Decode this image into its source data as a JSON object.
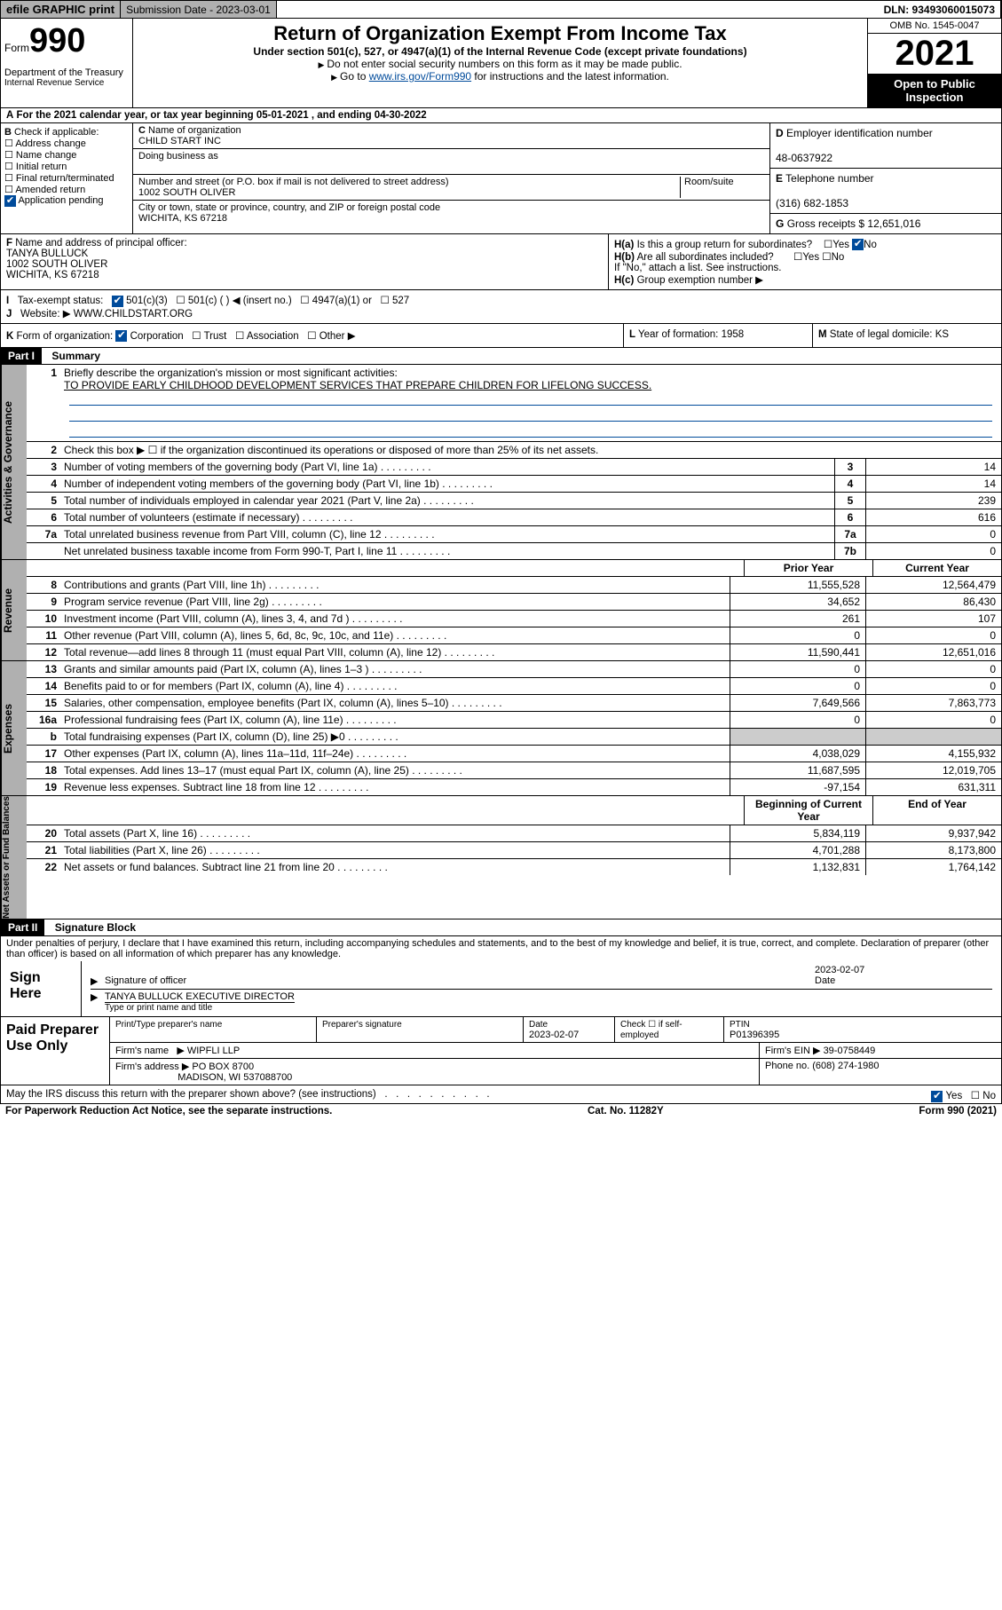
{
  "topbar": {
    "efile": "efile GRAPHIC print",
    "sub_label": "Submission Date - 2023-03-01",
    "dln": "DLN: 93493060015073"
  },
  "header": {
    "form_word": "Form",
    "form_no": "990",
    "title": "Return of Organization Exempt From Income Tax",
    "subtitle": "Under section 501(c), 527, or 4947(a)(1) of the Internal Revenue Code (except private foundations)",
    "note1": "Do not enter social security numbers on this form as it may be made public.",
    "note2_pre": "Go to ",
    "note2_link": "www.irs.gov/Form990",
    "note2_post": " for instructions and the latest information.",
    "omb": "OMB No. 1545-0047",
    "year": "2021",
    "inspect": "Open to Public Inspection",
    "dept": "Department of the Treasury",
    "irs": "Internal Revenue Service"
  },
  "ty": {
    "line": "For the 2021 calendar year, or tax year beginning 05-01-2021   , and ending 04-30-2022"
  },
  "B": {
    "label": "Check if applicable:",
    "opts": [
      "Address change",
      "Name change",
      "Initial return",
      "Final return/terminated",
      "Amended return",
      "Application pending"
    ]
  },
  "C": {
    "name_label": "Name of organization",
    "name": "CHILD START INC",
    "dba_label": "Doing business as",
    "street_label": "Number and street (or P.O. box if mail is not delivered to street address)",
    "room_label": "Room/suite",
    "street": "1002 SOUTH OLIVER",
    "city_label": "City or town, state or province, country, and ZIP or foreign postal code",
    "city": "WICHITA, KS  67218"
  },
  "D": {
    "label": "Employer identification number",
    "val": "48-0637922"
  },
  "E": {
    "label": "Telephone number",
    "val": "(316) 682-1853"
  },
  "G": {
    "label": "Gross receipts $",
    "val": "12,651,016"
  },
  "F": {
    "label": "Name and address of principal officer:",
    "name": "TANYA BULLUCK",
    "addr1": "1002 SOUTH OLIVER",
    "addr2": "WICHITA, KS  67218"
  },
  "H": {
    "a": "Is this a group return for subordinates?",
    "b": "Are all subordinates included?",
    "bnote": "If \"No,\" attach a list. See instructions.",
    "c": "Group exemption number"
  },
  "I": {
    "label": "Tax-exempt status:",
    "c3": "501(c)(3)",
    "c": "501(c) (   )",
    "ins": "(insert no.)",
    "a1": "4947(a)(1) or",
    "s527": "527"
  },
  "J": {
    "label": "Website:",
    "val": "WWW.CHILDSTART.ORG"
  },
  "K": {
    "label": "Form of organization:",
    "corp": "Corporation",
    "trust": "Trust",
    "assoc": "Association",
    "other": "Other"
  },
  "L": {
    "label": "Year of formation:",
    "val": "1958"
  },
  "M": {
    "label": "State of legal domicile:",
    "val": "KS"
  },
  "part1": {
    "hdr": "Part I",
    "title": "Summary",
    "q1": "Briefly describe the organization's mission or most significant activities:",
    "mission": "TO PROVIDE EARLY CHILDHOOD DEVELOPMENT SERVICES THAT PREPARE CHILDREN FOR LIFELONG SUCCESS.",
    "q2": "Check this box ▶ ☐  if the organization discontinued its operations or disposed of more than 25% of its net assets.",
    "rows_gov": [
      {
        "n": "3",
        "d": "Number of voting members of the governing body (Part VI, line 1a)",
        "b": "3",
        "v": "14"
      },
      {
        "n": "4",
        "d": "Number of independent voting members of the governing body (Part VI, line 1b)",
        "b": "4",
        "v": "14"
      },
      {
        "n": "5",
        "d": "Total number of individuals employed in calendar year 2021 (Part V, line 2a)",
        "b": "5",
        "v": "239"
      },
      {
        "n": "6",
        "d": "Total number of volunteers (estimate if necessary)",
        "b": "6",
        "v": "616"
      },
      {
        "n": "7a",
        "d": "Total unrelated business revenue from Part VIII, column (C), line 12",
        "b": "7a",
        "v": "0"
      },
      {
        "n": "",
        "d": "Net unrelated business taxable income from Form 990-T, Part I, line 11",
        "b": "7b",
        "v": "0"
      }
    ],
    "col_prior": "Prior Year",
    "col_curr": "Current Year",
    "rev": [
      {
        "n": "8",
        "d": "Contributions and grants (Part VIII, line 1h)",
        "p": "11,555,528",
        "c": "12,564,479"
      },
      {
        "n": "9",
        "d": "Program service revenue (Part VIII, line 2g)",
        "p": "34,652",
        "c": "86,430"
      },
      {
        "n": "10",
        "d": "Investment income (Part VIII, column (A), lines 3, 4, and 7d )",
        "p": "261",
        "c": "107"
      },
      {
        "n": "11",
        "d": "Other revenue (Part VIII, column (A), lines 5, 6d, 8c, 9c, 10c, and 11e)",
        "p": "0",
        "c": "0"
      },
      {
        "n": "12",
        "d": "Total revenue—add lines 8 through 11 (must equal Part VIII, column (A), line 12)",
        "p": "11,590,441",
        "c": "12,651,016"
      }
    ],
    "exp": [
      {
        "n": "13",
        "d": "Grants and similar amounts paid (Part IX, column (A), lines 1–3 )",
        "p": "0",
        "c": "0"
      },
      {
        "n": "14",
        "d": "Benefits paid to or for members (Part IX, column (A), line 4)",
        "p": "0",
        "c": "0"
      },
      {
        "n": "15",
        "d": "Salaries, other compensation, employee benefits (Part IX, column (A), lines 5–10)",
        "p": "7,649,566",
        "c": "7,863,773"
      },
      {
        "n": "16a",
        "d": "Professional fundraising fees (Part IX, column (A), line 11e)",
        "p": "0",
        "c": "0"
      },
      {
        "n": "b",
        "d": "Total fundraising expenses (Part IX, column (D), line 25) ▶0",
        "p": "",
        "c": "",
        "gray": true
      },
      {
        "n": "17",
        "d": "Other expenses (Part IX, column (A), lines 11a–11d, 11f–24e)",
        "p": "4,038,029",
        "c": "4,155,932"
      },
      {
        "n": "18",
        "d": "Total expenses. Add lines 13–17 (must equal Part IX, column (A), line 25)",
        "p": "11,687,595",
        "c": "12,019,705"
      },
      {
        "n": "19",
        "d": "Revenue less expenses. Subtract line 18 from line 12",
        "p": "-97,154",
        "c": "631,311"
      }
    ],
    "col_beg": "Beginning of Current Year",
    "col_end": "End of Year",
    "na": [
      {
        "n": "20",
        "d": "Total assets (Part X, line 16)",
        "p": "5,834,119",
        "c": "9,937,942"
      },
      {
        "n": "21",
        "d": "Total liabilities (Part X, line 26)",
        "p": "4,701,288",
        "c": "8,173,800"
      },
      {
        "n": "22",
        "d": "Net assets or fund balances. Subtract line 21 from line 20",
        "p": "1,132,831",
        "c": "1,764,142"
      }
    ]
  },
  "part2": {
    "hdr": "Part II",
    "title": "Signature Block"
  },
  "penalty": "Under penalties of perjury, I declare that I have examined this return, including accompanying schedules and statements, and to the best of my knowledge and belief, it is true, correct, and complete. Declaration of preparer (other than officer) is based on all information of which preparer has any knowledge.",
  "sign": {
    "here": "Sign Here",
    "sig_of": "Signature of officer",
    "date": "Date",
    "date_val": "2023-02-07",
    "name": "TANYA BULLUCK  EXECUTIVE DIRECTOR",
    "name_lbl": "Type or print name and title"
  },
  "prep": {
    "title": "Paid Preparer Use Only",
    "h1": "Print/Type preparer's name",
    "h2": "Preparer's signature",
    "h3": "Date",
    "h3v": "2023-02-07",
    "h4a": "Check",
    "h4b": "if self-employed",
    "h5": "PTIN",
    "h5v": "P01396395",
    "firm_lbl": "Firm's name",
    "firm": "WIPFLI LLP",
    "ein_lbl": "Firm's EIN",
    "ein": "39-0758449",
    "addr_lbl": "Firm's address",
    "addr1": "PO BOX 8700",
    "addr2": "MADISON, WI  537088700",
    "phone_lbl": "Phone no.",
    "phone": "(608) 274-1980"
  },
  "discuss": "May the IRS discuss this return with the preparer shown above? (see instructions)",
  "footer": {
    "left": "For Paperwork Reduction Act Notice, see the separate instructions.",
    "mid": "Cat. No. 11282Y",
    "right": "Form 990 (2021)"
  },
  "labels": {
    "gov": "Activities & Governance",
    "rev": "Revenue",
    "exp": "Expenses",
    "na": "Net Assets or Fund Balances"
  }
}
